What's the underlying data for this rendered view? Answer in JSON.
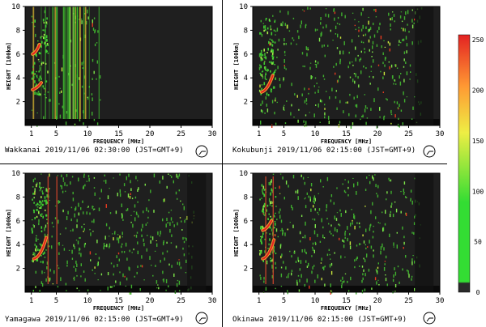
{
  "chart_data": [
    {
      "type": "heatmap",
      "station": "Wakkanai",
      "caption": "Wakkanai 2019/11/06 02:30:00 (JST=GMT+9)",
      "xlabel": "FREQUENCY [MHz]",
      "ylabel": "HEIGHT [100km]",
      "xlim": [
        0,
        30
      ],
      "ylim": [
        0,
        10
      ],
      "xticks": [
        "1",
        "5",
        "10",
        "15",
        "20",
        "25",
        "30"
      ],
      "yticks": [
        "2",
        "4",
        "6",
        "8",
        "10"
      ],
      "traces": [
        {
          "from": [
            1.2,
            3.0
          ],
          "to": [
            2.6,
            3.6
          ]
        },
        {
          "from": [
            1.2,
            6.0
          ],
          "to": [
            2.3,
            6.8
          ]
        }
      ],
      "stripes_until_mhz": 12
    },
    {
      "type": "heatmap",
      "station": "Kokubunji",
      "caption": "Kokubunji 2019/11/06 02:15:00 (JST=GMT+9)",
      "xlabel": "FREQUENCY [MHz]",
      "ylabel": "HEIGHT [100km]",
      "xlim": [
        0,
        30
      ],
      "ylim": [
        0,
        10
      ],
      "xticks": [
        "1",
        "5",
        "10",
        "15",
        "20",
        "25",
        "30"
      ],
      "yticks": [
        "2",
        "4",
        "6",
        "8",
        "10"
      ],
      "traces": [
        {
          "from": [
            1.4,
            2.8
          ],
          "to": [
            3.2,
            4.2
          ]
        }
      ]
    },
    {
      "type": "heatmap",
      "station": "Yamagawa",
      "caption": "Yamagawa 2019/11/06 02:15:00 (JST=GMT+9)",
      "xlabel": "FREQUENCY [MHz]",
      "ylabel": "HEIGHT [100km]",
      "xlim": [
        0,
        30
      ],
      "ylim": [
        0,
        10
      ],
      "xticks": [
        "1",
        "5",
        "10",
        "15",
        "20",
        "25",
        "30"
      ],
      "yticks": [
        "2",
        "4",
        "6",
        "8",
        "10"
      ],
      "traces": [
        {
          "from": [
            1.4,
            2.8
          ],
          "to": [
            3.4,
            4.6
          ]
        }
      ],
      "vertical_lines_mhz": [
        3.6,
        5.0
      ]
    },
    {
      "type": "heatmap",
      "station": "Okinawa",
      "caption": "Okinawa 2019/11/06 02:15:00 (JST=GMT+9)",
      "xlabel": "FREQUENCY [MHz]",
      "ylabel": "HEIGHT [100km]",
      "xlim": [
        0,
        30
      ],
      "ylim": [
        0,
        10
      ],
      "xticks": [
        "1",
        "5",
        "10",
        "15",
        "20",
        "25",
        "30"
      ],
      "yticks": [
        "2",
        "4",
        "6",
        "8",
        "10"
      ],
      "traces": [
        {
          "from": [
            1.6,
            2.8
          ],
          "to": [
            3.4,
            4.4
          ]
        },
        {
          "from": [
            1.6,
            5.2
          ],
          "to": [
            3.0,
            6.0
          ]
        }
      ],
      "vertical_lines_mhz": [
        2.0,
        3.2
      ]
    }
  ],
  "colorbar": {
    "ticks": [
      "250",
      "200",
      "150",
      "100",
      "50",
      "0"
    ],
    "range": [
      0,
      255
    ],
    "colors": [
      "#2a2a2a",
      "#33dd33",
      "#eeee44",
      "#ff9933",
      "#e32222"
    ]
  }
}
